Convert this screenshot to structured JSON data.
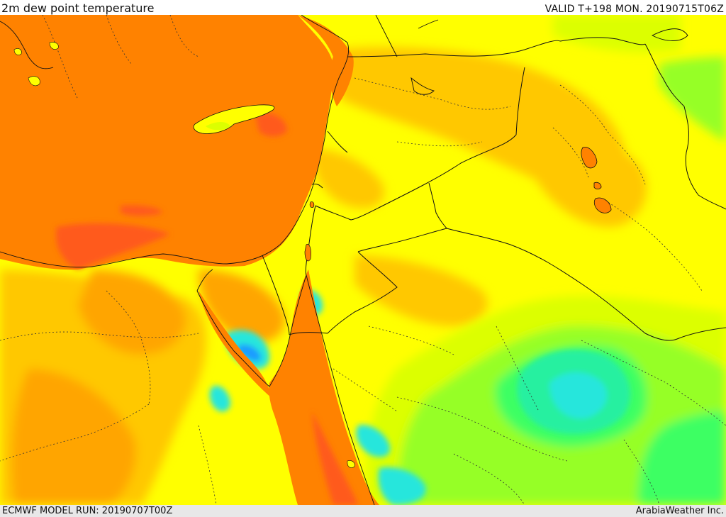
{
  "header": {
    "title": "2m dew point temperature",
    "valid_time": "VALID T+198 MON. 20190715T06Z"
  },
  "footer": {
    "model_run": "ECMWF MODEL RUN: 20190707T00Z",
    "credit": "ArabiaWeather Inc."
  },
  "map": {
    "variable": "2m dew point temperature",
    "palette": {
      "deep_orange": "#ff5a1e",
      "orange": "#ff8200",
      "light_orange": "#ffa500",
      "amber": "#ffc800",
      "yellow": "#ffff00",
      "yellow_green": "#dcff00",
      "light_green": "#96ff28",
      "green": "#3cff64",
      "aqua_green": "#28f0a0",
      "cyan": "#28e6dc",
      "blue": "#1e9bff"
    },
    "line_colors": {
      "country_border": "#111111",
      "province_border": "#333333"
    }
  }
}
